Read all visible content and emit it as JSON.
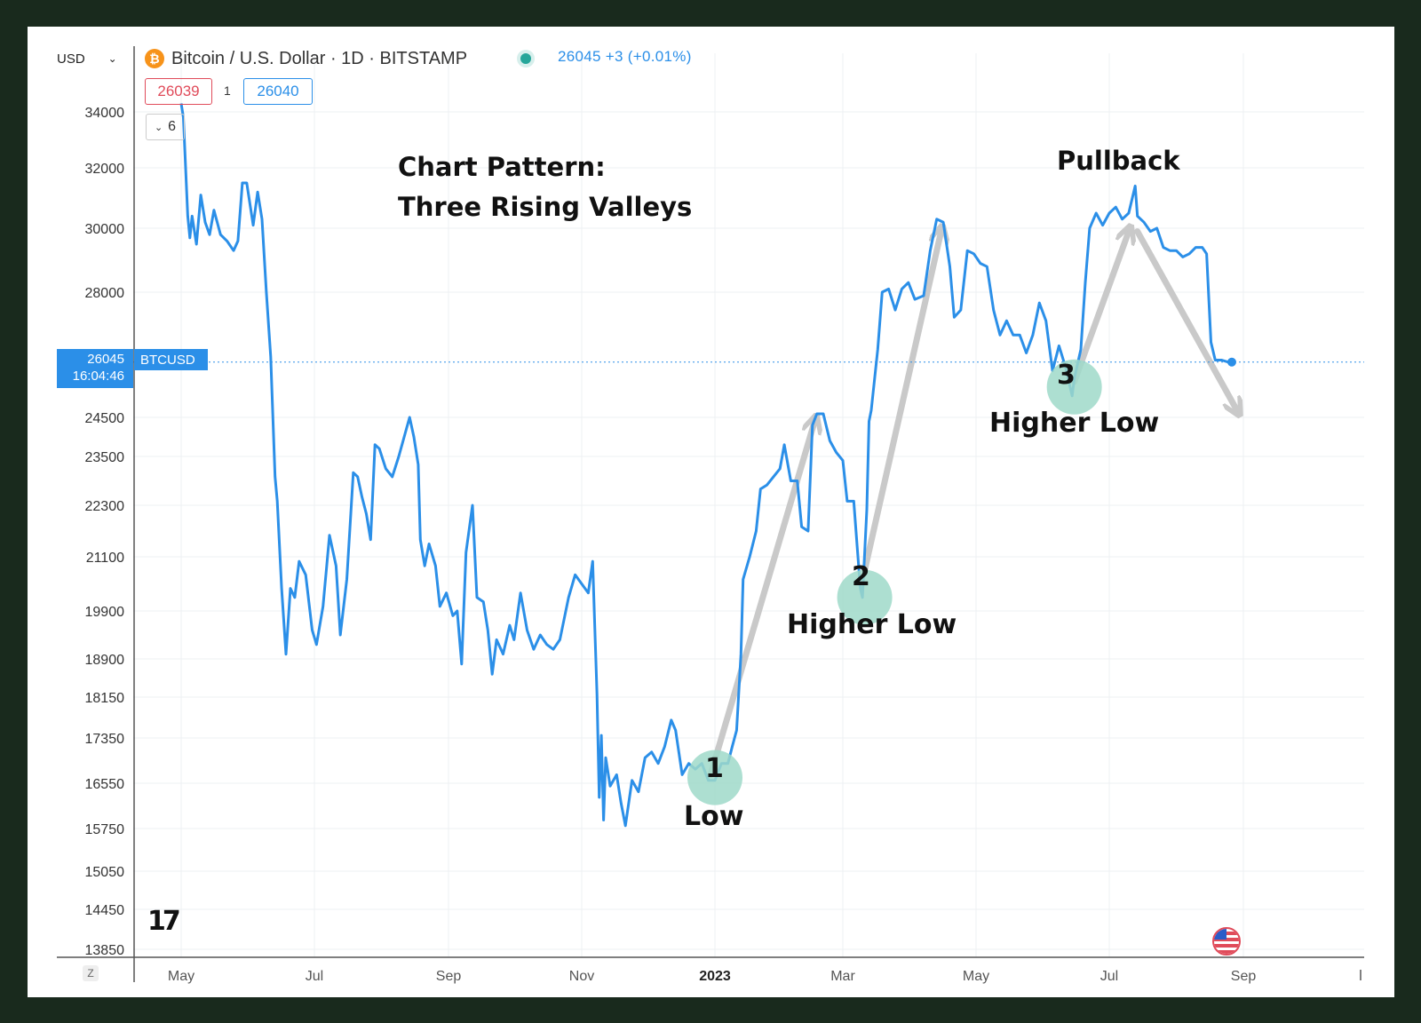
{
  "header": {
    "currency": "USD",
    "symbol_title": "Bitcoin / U.S. Dollar · 1D · BITSTAMP",
    "btc_badge": "₿",
    "price_change": "26045 +3 (+0.01%)",
    "bid": "26039",
    "spread": "1",
    "ask": "26040",
    "collapse_count": "6"
  },
  "price_tag": {
    "price": "26045",
    "time": "16:04:46",
    "symbol": "BTCUSD"
  },
  "annotations": {
    "title_line1": "Chart Pattern:",
    "title_line2": "Three Rising Valleys",
    "pullback": "Pullback",
    "valley1_number": "1",
    "valley1_label": "Low",
    "valley2_number": "2",
    "valley2_label": "Higher Low",
    "valley3_number": "3",
    "valley3_label": "Higher Low"
  },
  "footer": {
    "z_key": "Z",
    "tv_logo": "17"
  },
  "colors": {
    "line": "#2b8fe8",
    "bid": "#e04b5a",
    "ask": "#2b8fe8",
    "marker": "#9fd9c9",
    "arrow": "#c9c9c9",
    "background": "#192a1d"
  },
  "chart_data": {
    "type": "line",
    "title": "",
    "xlabel": "",
    "ylabel": "",
    "x_tick_labels": [
      "May",
      "Jul",
      "Sep",
      "Nov",
      "2023",
      "Mar",
      "May",
      "Jul",
      "Sep"
    ],
    "y_tick_labels": [
      "34000",
      "32000",
      "30000",
      "28000",
      "24500",
      "23500",
      "22300",
      "21100",
      "19900",
      "18900",
      "18150",
      "17350",
      "16550",
      "15750",
      "15050",
      "14450",
      "13850"
    ],
    "grid": true,
    "series": [
      {
        "values": [
          [
            "2022-05-01",
            34300
          ],
          [
            "2022-05-02",
            33800
          ],
          [
            "2022-05-04",
            30400
          ],
          [
            "2022-05-05",
            29700
          ],
          [
            "2022-05-06",
            30400
          ],
          [
            "2022-05-08",
            29500
          ],
          [
            "2022-05-10",
            31100
          ],
          [
            "2022-05-12",
            30200
          ],
          [
            "2022-05-14",
            29800
          ],
          [
            "2022-05-16",
            30600
          ],
          [
            "2022-05-19",
            29800
          ],
          [
            "2022-05-22",
            29600
          ],
          [
            "2022-05-25",
            29300
          ],
          [
            "2022-05-27",
            29600
          ],
          [
            "2022-05-29",
            31500
          ],
          [
            "2022-05-31",
            31500
          ],
          [
            "2022-06-03",
            30100
          ],
          [
            "2022-06-05",
            31200
          ],
          [
            "2022-06-07",
            30300
          ],
          [
            "2022-06-09",
            28000
          ],
          [
            "2022-06-11",
            26200
          ],
          [
            "2022-06-13",
            23000
          ],
          [
            "2022-06-14",
            22400
          ],
          [
            "2022-06-16",
            20400
          ],
          [
            "2022-06-18",
            19000
          ],
          [
            "2022-06-20",
            20400
          ],
          [
            "2022-06-22",
            20200
          ],
          [
            "2022-06-24",
            21000
          ],
          [
            "2022-06-27",
            20700
          ],
          [
            "2022-06-30",
            19500
          ],
          [
            "2022-07-02",
            19200
          ],
          [
            "2022-07-05",
            20000
          ],
          [
            "2022-07-08",
            21600
          ],
          [
            "2022-07-11",
            20900
          ],
          [
            "2022-07-13",
            19400
          ],
          [
            "2022-07-16",
            20600
          ],
          [
            "2022-07-19",
            23100
          ],
          [
            "2022-07-21",
            23000
          ],
          [
            "2022-07-23",
            22500
          ],
          [
            "2022-07-25",
            22100
          ],
          [
            "2022-07-27",
            21500
          ],
          [
            "2022-07-29",
            23800
          ],
          [
            "2022-07-31",
            23700
          ],
          [
            "2022-08-03",
            23200
          ],
          [
            "2022-08-06",
            23000
          ],
          [
            "2022-08-09",
            23500
          ],
          [
            "2022-08-12",
            24100
          ],
          [
            "2022-08-14",
            24500
          ],
          [
            "2022-08-16",
            24000
          ],
          [
            "2022-08-18",
            23300
          ],
          [
            "2022-08-19",
            21500
          ],
          [
            "2022-08-21",
            20900
          ],
          [
            "2022-08-23",
            21400
          ],
          [
            "2022-08-26",
            20900
          ],
          [
            "2022-08-28",
            20000
          ],
          [
            "2022-08-31",
            20300
          ],
          [
            "2022-09-03",
            19800
          ],
          [
            "2022-09-05",
            19900
          ],
          [
            "2022-09-07",
            18800
          ],
          [
            "2022-09-09",
            21200
          ],
          [
            "2022-09-12",
            22300
          ],
          [
            "2022-09-14",
            20200
          ],
          [
            "2022-09-17",
            20100
          ],
          [
            "2022-09-19",
            19500
          ],
          [
            "2022-09-21",
            18600
          ],
          [
            "2022-09-23",
            19300
          ],
          [
            "2022-09-26",
            19000
          ],
          [
            "2022-09-29",
            19600
          ],
          [
            "2022-10-01",
            19300
          ],
          [
            "2022-10-04",
            20300
          ],
          [
            "2022-10-07",
            19500
          ],
          [
            "2022-10-10",
            19100
          ],
          [
            "2022-10-13",
            19400
          ],
          [
            "2022-10-16",
            19200
          ],
          [
            "2022-10-19",
            19100
          ],
          [
            "2022-10-22",
            19300
          ],
          [
            "2022-10-26",
            20200
          ],
          [
            "2022-10-29",
            20700
          ],
          [
            "2022-11-01",
            20500
          ],
          [
            "2022-11-04",
            20300
          ],
          [
            "2022-11-06",
            21000
          ],
          [
            "2022-11-08",
            18200
          ],
          [
            "2022-11-09",
            16300
          ],
          [
            "2022-11-10",
            17400
          ],
          [
            "2022-11-11",
            15900
          ],
          [
            "2022-11-12",
            17000
          ],
          [
            "2022-11-14",
            16500
          ],
          [
            "2022-11-17",
            16700
          ],
          [
            "2022-11-19",
            16200
          ],
          [
            "2022-11-21",
            15800
          ],
          [
            "2022-11-24",
            16600
          ],
          [
            "2022-11-27",
            16400
          ],
          [
            "2022-11-30",
            17000
          ],
          [
            "2022-12-03",
            17100
          ],
          [
            "2022-12-06",
            16900
          ],
          [
            "2022-12-09",
            17200
          ],
          [
            "2022-12-12",
            17700
          ],
          [
            "2022-12-14",
            17500
          ],
          [
            "2022-12-17",
            16700
          ],
          [
            "2022-12-20",
            16900
          ],
          [
            "2022-12-23",
            16800
          ],
          [
            "2022-12-26",
            16900
          ],
          [
            "2022-12-29",
            16600
          ],
          [
            "2023-01-01",
            16600
          ],
          [
            "2023-01-04",
            16900
          ],
          [
            "2023-01-07",
            16900
          ],
          [
            "2023-01-09",
            17200
          ],
          [
            "2023-01-11",
            17500
          ],
          [
            "2023-01-13",
            19000
          ],
          [
            "2023-01-14",
            20600
          ],
          [
            "2023-01-17",
            21100
          ],
          [
            "2023-01-20",
            21700
          ],
          [
            "2023-01-22",
            22700
          ],
          [
            "2023-01-25",
            22800
          ],
          [
            "2023-01-28",
            23000
          ],
          [
            "2023-01-31",
            23200
          ],
          [
            "2023-02-02",
            23800
          ],
          [
            "2023-02-05",
            22900
          ],
          [
            "2023-02-08",
            22900
          ],
          [
            "2023-02-10",
            21800
          ],
          [
            "2023-02-13",
            21700
          ],
          [
            "2023-02-15",
            24300
          ],
          [
            "2023-02-17",
            24600
          ],
          [
            "2023-02-20",
            24600
          ],
          [
            "2023-02-23",
            23900
          ],
          [
            "2023-02-26",
            23600
          ],
          [
            "2023-03-01",
            23400
          ],
          [
            "2023-03-03",
            22400
          ],
          [
            "2023-03-06",
            22400
          ],
          [
            "2023-03-09",
            20400
          ],
          [
            "2023-03-10",
            20200
          ],
          [
            "2023-03-12",
            22200
          ],
          [
            "2023-03-13",
            24400
          ],
          [
            "2023-03-14",
            24700
          ],
          [
            "2023-03-17",
            26400
          ],
          [
            "2023-03-19",
            28000
          ],
          [
            "2023-03-22",
            28100
          ],
          [
            "2023-03-25",
            27500
          ],
          [
            "2023-03-28",
            28100
          ],
          [
            "2023-03-31",
            28300
          ],
          [
            "2023-04-03",
            27800
          ],
          [
            "2023-04-07",
            27900
          ],
          [
            "2023-04-10",
            29300
          ],
          [
            "2023-04-13",
            30300
          ],
          [
            "2023-04-16",
            30200
          ],
          [
            "2023-04-19",
            28800
          ],
          [
            "2023-04-21",
            27300
          ],
          [
            "2023-04-24",
            27500
          ],
          [
            "2023-04-27",
            29300
          ],
          [
            "2023-04-30",
            29200
          ],
          [
            "2023-05-03",
            28900
          ],
          [
            "2023-05-06",
            28800
          ],
          [
            "2023-05-09",
            27500
          ],
          [
            "2023-05-12",
            26800
          ],
          [
            "2023-05-15",
            27200
          ],
          [
            "2023-05-18",
            26800
          ],
          [
            "2023-05-21",
            26800
          ],
          [
            "2023-05-24",
            26300
          ],
          [
            "2023-05-27",
            26800
          ],
          [
            "2023-05-30",
            27700
          ],
          [
            "2023-06-02",
            27200
          ],
          [
            "2023-06-05",
            25800
          ],
          [
            "2023-06-08",
            26500
          ],
          [
            "2023-06-11",
            25900
          ],
          [
            "2023-06-14",
            25100
          ],
          [
            "2023-06-15",
            25600
          ],
          [
            "2023-06-18",
            26400
          ],
          [
            "2023-06-20",
            28300
          ],
          [
            "2023-06-22",
            30000
          ],
          [
            "2023-06-25",
            30500
          ],
          [
            "2023-06-28",
            30100
          ],
          [
            "2023-07-01",
            30500
          ],
          [
            "2023-07-04",
            30700
          ],
          [
            "2023-07-07",
            30300
          ],
          [
            "2023-07-10",
            30500
          ],
          [
            "2023-07-13",
            31400
          ],
          [
            "2023-07-14",
            30400
          ],
          [
            "2023-07-17",
            30200
          ],
          [
            "2023-07-20",
            29900
          ],
          [
            "2023-07-23",
            30000
          ],
          [
            "2023-07-26",
            29400
          ],
          [
            "2023-07-29",
            29300
          ],
          [
            "2023-08-01",
            29300
          ],
          [
            "2023-08-04",
            29100
          ],
          [
            "2023-08-07",
            29200
          ],
          [
            "2023-08-10",
            29400
          ],
          [
            "2023-08-13",
            29400
          ],
          [
            "2023-08-15",
            29200
          ],
          [
            "2023-08-17",
            26600
          ],
          [
            "2023-08-19",
            26100
          ],
          [
            "2023-08-22",
            26100
          ],
          [
            "2023-08-25",
            26045
          ]
        ]
      }
    ]
  }
}
